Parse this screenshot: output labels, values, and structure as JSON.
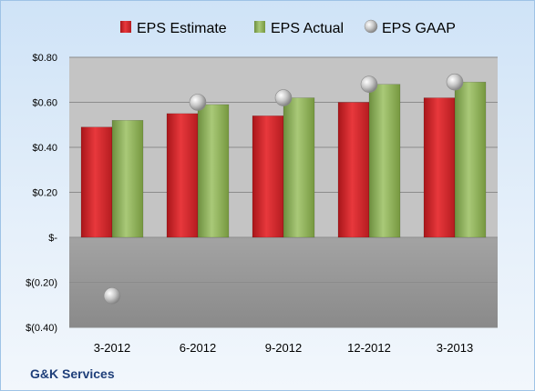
{
  "chart_data": {
    "type": "bar",
    "categories": [
      "3-2012",
      "6-2012",
      "9-2012",
      "12-2012",
      "3-2013"
    ],
    "series": [
      {
        "name": "EPS Estimate",
        "kind": "bar",
        "color": "#d9262b",
        "values": [
          0.49,
          0.55,
          0.54,
          0.6,
          0.62
        ]
      },
      {
        "name": "EPS Actual",
        "kind": "bar",
        "color": "#8cb05a",
        "values": [
          0.52,
          0.59,
          0.62,
          0.68,
          0.69
        ]
      },
      {
        "name": "EPS GAAP",
        "kind": "marker",
        "color": "#b4b4b4",
        "values": [
          -0.26,
          0.6,
          0.62,
          0.68,
          0.69
        ]
      }
    ],
    "ylim": [
      -0.4,
      0.8
    ],
    "yticks": [
      0.8,
      0.6,
      0.4,
      0.2,
      0.0,
      -0.2,
      -0.4
    ],
    "ytick_labels": [
      "$0.80",
      "$0.60",
      "$0.40",
      "$0.20",
      "$-",
      "$(0.20)",
      "$(0.40)"
    ],
    "legend_position": "top",
    "grid": true
  },
  "footer": {
    "company": "G&K Services"
  }
}
